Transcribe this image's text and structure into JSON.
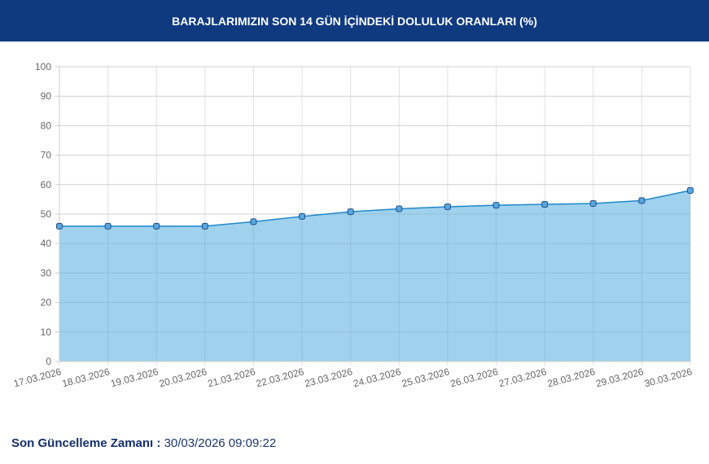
{
  "header": {
    "title": "BARAJLARIMIZIN SON 14 GÜN İÇİNDEKİ DOLULUK ORANLARI (%)"
  },
  "chart_data": {
    "type": "area",
    "categories": [
      "17.03.2026",
      "18.03.2026",
      "19.03.2026",
      "20.03.2026",
      "21.03.2026",
      "22.03.2026",
      "23.03.2026",
      "24.03.2026",
      "25.03.2026",
      "26.03.2026",
      "27.03.2026",
      "28.03.2026",
      "29.03.2026",
      "30.03.2026"
    ],
    "values": [
      45.9,
      45.9,
      45.9,
      45.9,
      47.4,
      49.2,
      50.8,
      51.8,
      52.5,
      53.0,
      53.3,
      53.6,
      54.6,
      58.0
    ],
    "ylim": [
      0,
      100
    ],
    "yticks": [
      0,
      10,
      20,
      30,
      40,
      50,
      60,
      70,
      80,
      90,
      100
    ],
    "grid": true,
    "colors": {
      "fill": "#9bcfec",
      "line": "#1e88cc",
      "marker": "#5aa6dc",
      "marker_edge": "#1c4f8c"
    }
  },
  "footer": {
    "label": "Son Güncelleme Zamanı :",
    "value": "30/03/2026 09:09:22"
  }
}
